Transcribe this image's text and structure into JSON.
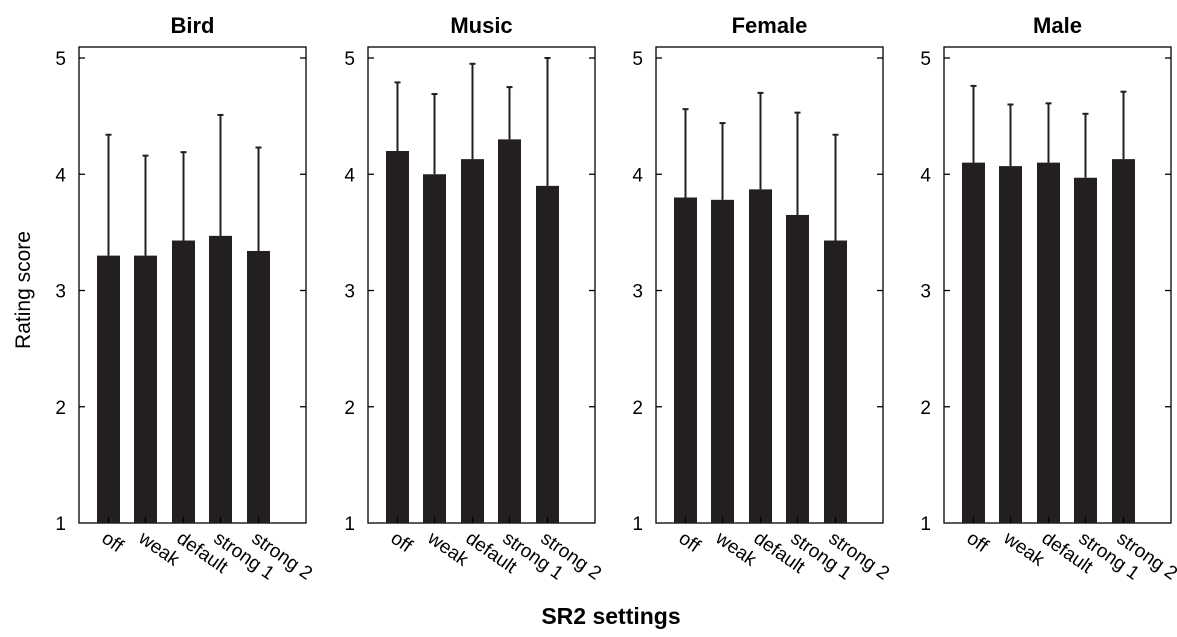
{
  "chart_data": {
    "type": "bar",
    "ylabel": "Rating score",
    "xlabel": "SR2 settings",
    "ylim": [
      1,
      5
    ],
    "yticks": [
      "1",
      "2",
      "3",
      "4",
      "5"
    ],
    "categories": [
      "off",
      "weak",
      "default",
      "strong 1",
      "strong 2"
    ],
    "error_bars": "upper",
    "grid": false,
    "bar_color": "#231f20",
    "panels": [
      {
        "title": "Bird",
        "values": [
          3.3,
          3.3,
          3.43,
          3.47,
          3.34
        ],
        "upper": [
          4.34,
          4.16,
          4.19,
          4.51,
          4.23
        ]
      },
      {
        "title": "Music",
        "values": [
          4.2,
          4.0,
          4.13,
          4.3,
          3.9
        ],
        "upper": [
          4.79,
          4.69,
          4.95,
          4.75,
          5.0
        ]
      },
      {
        "title": "Female",
        "values": [
          3.8,
          3.78,
          3.87,
          3.65,
          3.43
        ],
        "upper": [
          4.56,
          4.44,
          4.7,
          4.53,
          4.34
        ]
      },
      {
        "title": "Male",
        "values": [
          4.1,
          4.07,
          4.1,
          3.97,
          4.13
        ],
        "upper": [
          4.76,
          4.6,
          4.61,
          4.52,
          4.71
        ]
      }
    ]
  }
}
